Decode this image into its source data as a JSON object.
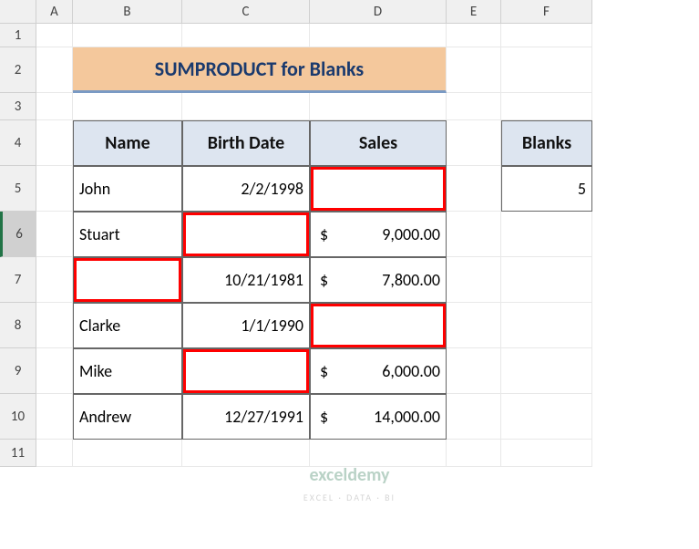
{
  "columns": [
    "A",
    "B",
    "C",
    "D",
    "E",
    "F"
  ],
  "rows": [
    "1",
    "2",
    "3",
    "4",
    "5",
    "6",
    "7",
    "8",
    "9",
    "10",
    "11"
  ],
  "selected_row": "6",
  "title": "SUMPRODUCT for Blanks",
  "headers": {
    "name": "Name",
    "birth": "Birth Date",
    "sales": "Sales"
  },
  "data": [
    {
      "name": "John",
      "birth": "2/2/1998",
      "sales": "",
      "hl_name": false,
      "hl_birth": false,
      "hl_sales": true
    },
    {
      "name": "Stuart",
      "birth": "",
      "sales": "9,000.00",
      "hl_name": false,
      "hl_birth": true,
      "hl_sales": false
    },
    {
      "name": "",
      "birth": "10/21/1981",
      "sales": "7,800.00",
      "hl_name": true,
      "hl_birth": false,
      "hl_sales": false
    },
    {
      "name": "Clarke",
      "birth": "1/1/1990",
      "sales": "",
      "hl_name": false,
      "hl_birth": false,
      "hl_sales": true
    },
    {
      "name": "Mike",
      "birth": "",
      "sales": "6,000.00",
      "hl_name": false,
      "hl_birth": true,
      "hl_sales": false
    },
    {
      "name": "Andrew",
      "birth": "12/27/1991",
      "sales": "14,000.00",
      "hl_name": false,
      "hl_birth": false,
      "hl_sales": false
    }
  ],
  "blanks": {
    "label": "Blanks",
    "value": "5"
  },
  "currency_symbol": "$",
  "watermark": {
    "brand": "exceldemy",
    "sub": "EXCEL · DATA · BI"
  },
  "colors": {
    "title_bg": "#f4c89c",
    "title_fg": "#1a3a6e",
    "title_underline": "#7a9ac4",
    "th_bg": "#dde5f0",
    "border": "#666666",
    "highlight": "#ff0000",
    "col_header_bg": "#f0f0f0"
  }
}
